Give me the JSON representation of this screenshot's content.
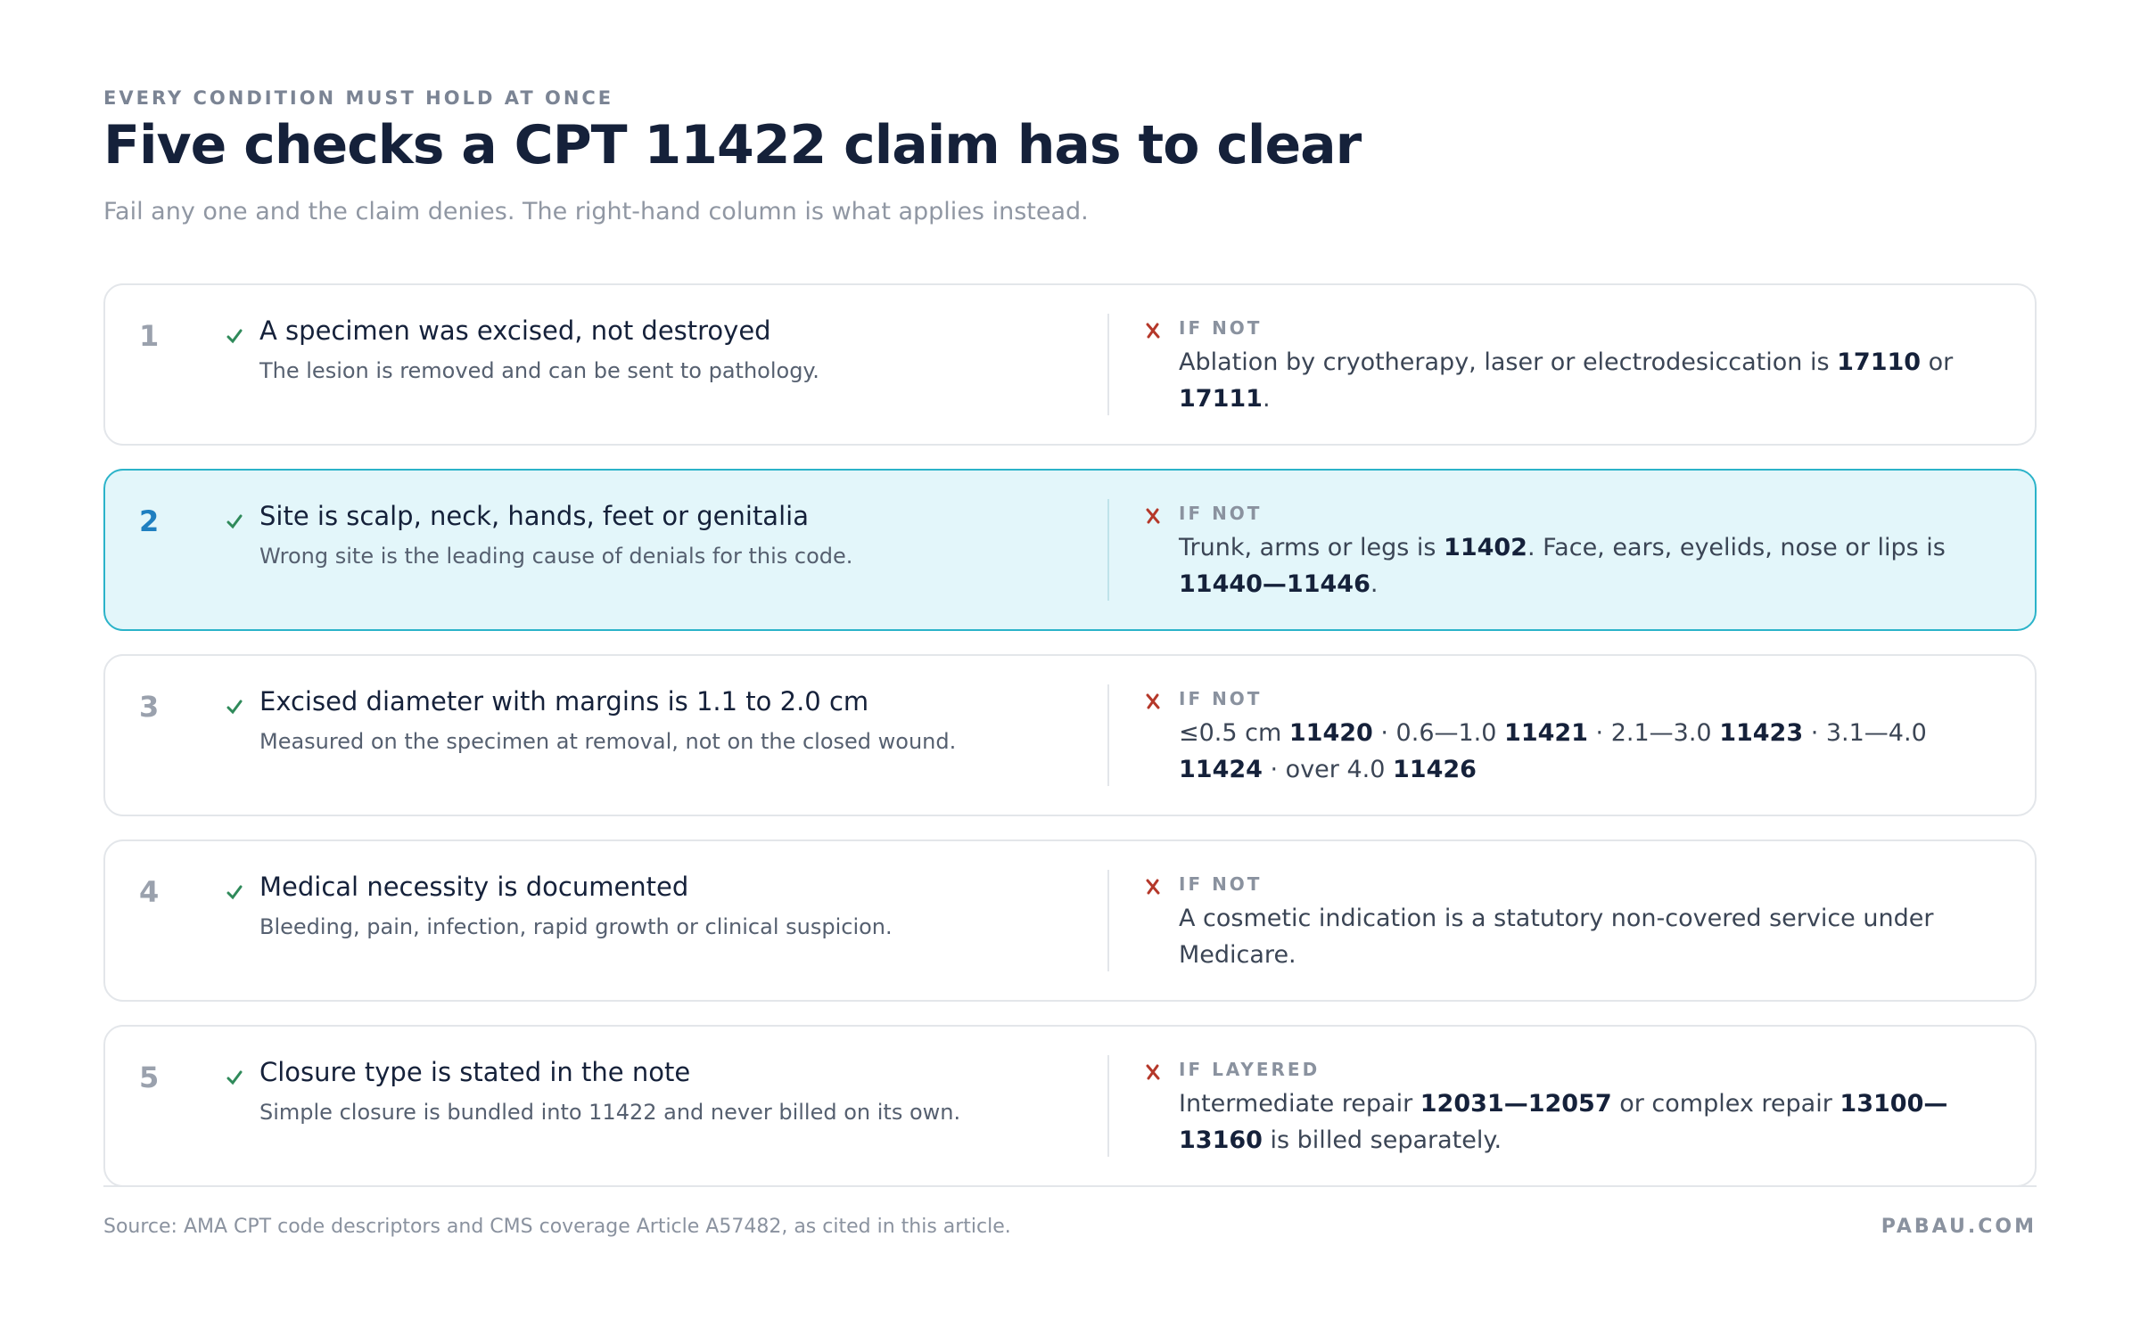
{
  "header": {
    "eyebrow": "EVERY CONDITION MUST HOLD AT ONCE",
    "title": "Five checks a CPT 11422 claim has to clear",
    "subtitle": "Fail any one and the claim denies. The right-hand column is what applies instead."
  },
  "checks": [
    {
      "number": 1,
      "highlighted": false,
      "title": "A specimen was excised, not destroyed",
      "note": "The lesion is removed and can be sent to pathology.",
      "alt": {
        "label": "IF NOT",
        "parts": [
          {
            "text": "Ablation by cryotherapy, laser or electrodesiccation is "
          },
          {
            "text": "17110",
            "strong": true
          },
          {
            "text": " or "
          },
          {
            "text": "17111",
            "strong": true
          },
          {
            "text": "."
          }
        ]
      }
    },
    {
      "number": 2,
      "highlighted": true,
      "title": "Site is scalp, neck, hands, feet or genitalia",
      "note": "Wrong site is the leading cause of denials for this code.",
      "alt": {
        "label": "IF NOT",
        "parts": [
          {
            "text": "Trunk, arms or legs is "
          },
          {
            "text": "11402",
            "strong": true
          },
          {
            "text": ". Face, ears, eyelids, nose or lips is "
          },
          {
            "text": "11440—11446",
            "strong": true
          },
          {
            "text": "."
          }
        ]
      }
    },
    {
      "number": 3,
      "highlighted": false,
      "title": "Excised diameter with margins is 1.1 to 2.0 cm",
      "note": "Measured on the specimen at removal, not on the closed wound.",
      "alt": {
        "label": "IF NOT",
        "parts": [
          {
            "text": "≤0.5 cm "
          },
          {
            "text": "11420",
            "strong": true
          },
          {
            "text": " · 0.6—1.0 "
          },
          {
            "text": "11421",
            "strong": true
          },
          {
            "text": " · 2.1—3.0 "
          },
          {
            "text": "11423",
            "strong": true
          },
          {
            "text": " · 3.1—4.0 "
          },
          {
            "text": "11424",
            "strong": true
          },
          {
            "text": " · over 4.0 "
          },
          {
            "text": "11426",
            "strong": true
          }
        ]
      }
    },
    {
      "number": 4,
      "highlighted": false,
      "title": "Medical necessity is documented",
      "note": "Bleeding, pain, infection, rapid growth or clinical suspicion.",
      "alt": {
        "label": "IF NOT",
        "parts": [
          {
            "text": "A cosmetic indication is a statutory non-covered service under Medicare."
          }
        ]
      }
    },
    {
      "number": 5,
      "highlighted": false,
      "title": "Closure type is stated in the note",
      "note": "Simple closure is bundled into 11422 and never billed on its own.",
      "alt": {
        "label": "IF LAYERED",
        "parts": [
          {
            "text": "Intermediate repair "
          },
          {
            "text": "12031—12057",
            "strong": true
          },
          {
            "text": " or complex repair "
          },
          {
            "text": "13100—13160",
            "strong": true
          },
          {
            "text": " is billed separately."
          }
        ]
      }
    }
  ],
  "footer": {
    "source": "Source: AMA CPT code descriptors and CMS coverage Article A57482, as cited in this article.",
    "brand": "PABAU.COM"
  }
}
